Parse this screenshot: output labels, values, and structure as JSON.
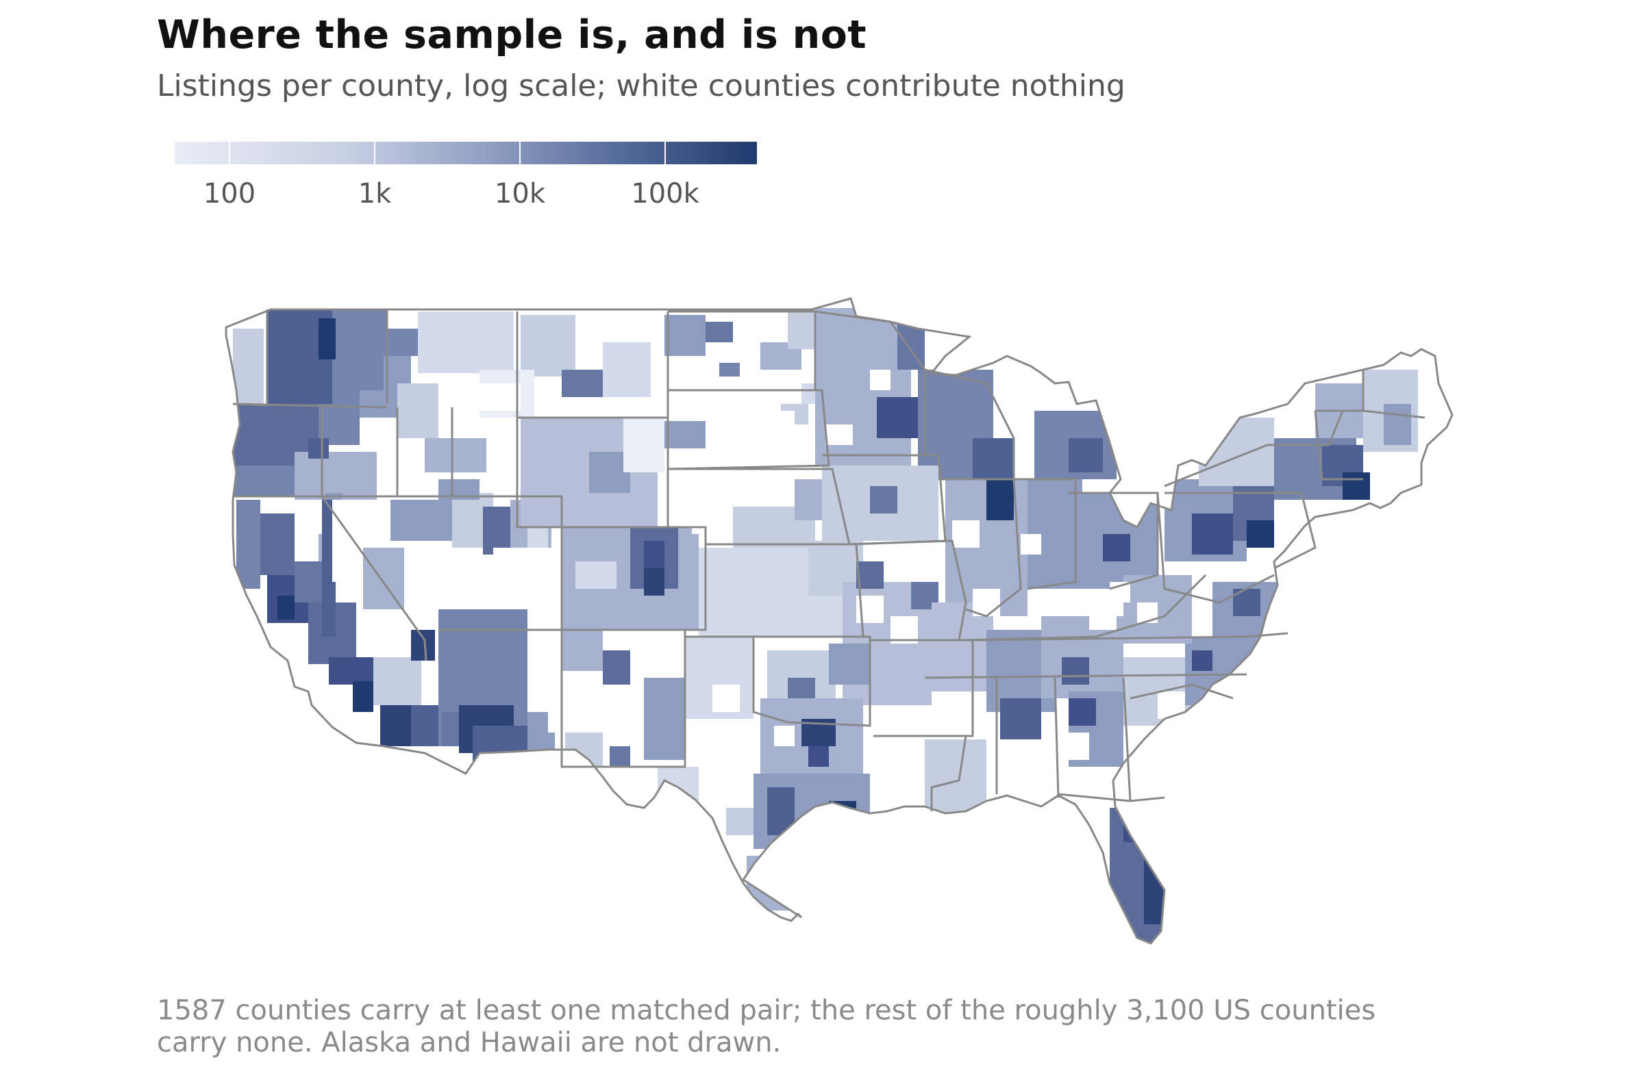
{
  "header": {
    "title": "Where the sample is, and is not",
    "subtitle": "Listings per county, log scale; white counties contribute nothing"
  },
  "legend": {
    "scale": "log",
    "ticks": [
      {
        "value": 100,
        "label": "100"
      },
      {
        "value": 1000,
        "label": "1k"
      },
      {
        "value": 10000,
        "label": "10k"
      },
      {
        "value": 100000,
        "label": "100k"
      }
    ],
    "range": [
      40,
      400000
    ],
    "colors": {
      "low": "#e9edf6",
      "mid": "#8e9cc0",
      "high": "#1f3a6e"
    }
  },
  "map": {
    "region": "Contiguous United States (counties)",
    "fill_empty": "#ffffff",
    "state_border_color": "#888888"
  },
  "footnote": {
    "line1": "1587 counties carry at least one matched pair; the rest of the roughly 3,100 US counties",
    "line2": "carry none. Alaska and Hawaii are not drawn."
  }
}
